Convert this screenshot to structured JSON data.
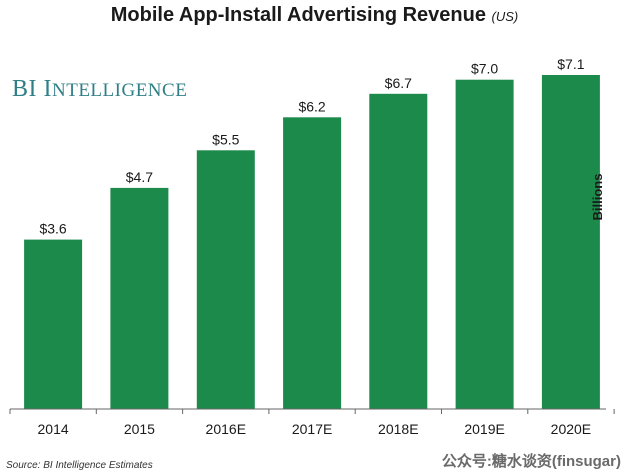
{
  "chart_data": {
    "type": "bar",
    "title": "Mobile App-Install Advertising Revenue",
    "title_suffix": "(US)",
    "ylabel": "Billions",
    "xlabel": "",
    "categories": [
      "2014",
      "2015",
      "2016E",
      "2017E",
      "2018E",
      "2019E",
      "2020E"
    ],
    "values": [
      3.6,
      4.7,
      5.5,
      6.2,
      6.7,
      7.0,
      7.1
    ],
    "data_labels": [
      "$3.6",
      "$4.7",
      "$5.5",
      "$6.2",
      "$6.7",
      "$7.0",
      "$7.1"
    ],
    "ylim": [
      0,
      7.1
    ],
    "grid": false,
    "legend": "none",
    "bar_color": "#1b8a4b"
  },
  "brand": {
    "first": "BI ",
    "initial": "I",
    "rest": "NTELLIGENCE",
    "color": "#2f7f86"
  },
  "source": "Source: BI Intelligence Estimates",
  "watermark": "公众号:糖水谈资(finsugar)"
}
